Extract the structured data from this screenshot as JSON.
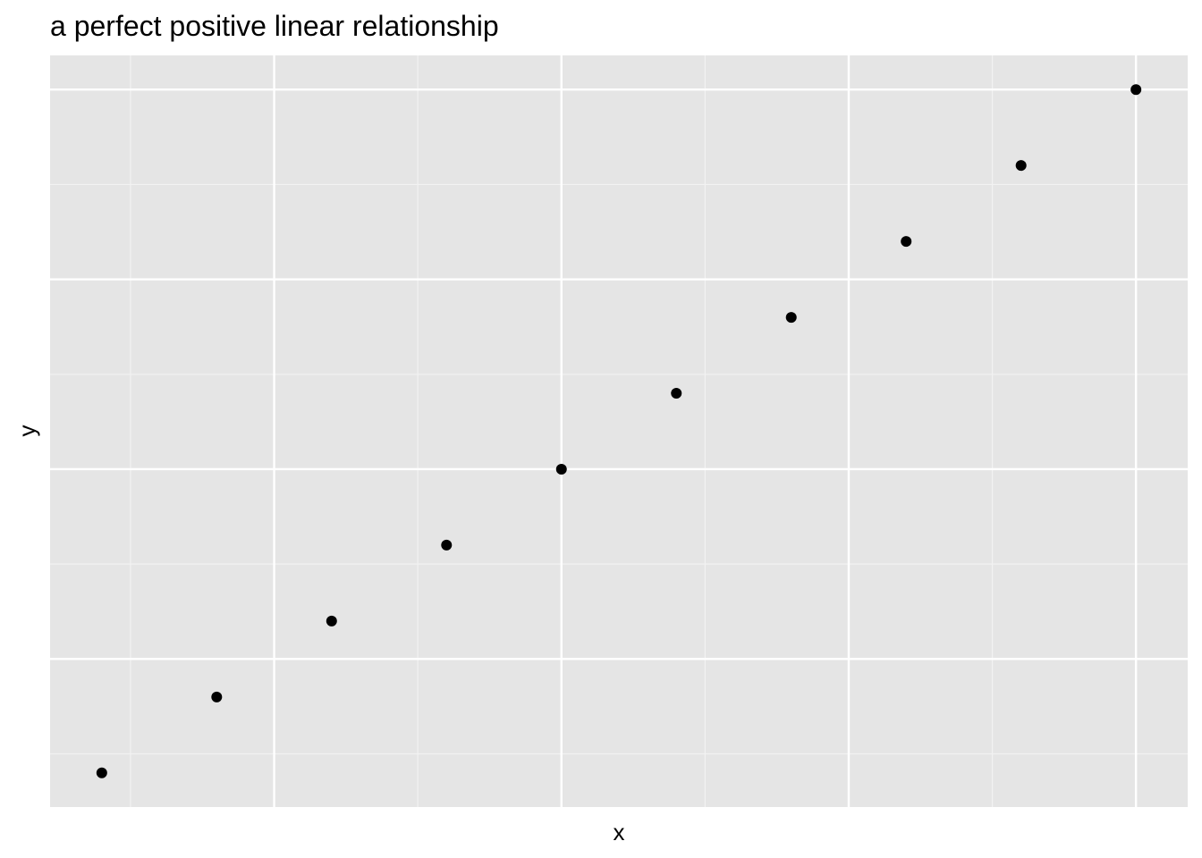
{
  "chart_data": {
    "type": "scatter",
    "title": "a perfect positive linear relationship",
    "x_label": "x",
    "y_label": "y",
    "x": [
      1,
      2,
      3,
      4,
      5,
      6,
      7,
      8,
      9,
      10
    ],
    "values": [
      1,
      2,
      3,
      4,
      5,
      6,
      7,
      8,
      9,
      10
    ],
    "color": "#000000",
    "xlim": [
      0.55,
      10.45
    ],
    "ylim": [
      0.55,
      10.45
    ],
    "xticks": [
      2.5,
      5,
      7.5,
      10
    ],
    "yticks": [
      2.5,
      5,
      7.5,
      10
    ],
    "x_minor_ticks": [
      1.25,
      3.75,
      6.25,
      8.75
    ],
    "y_minor_ticks": [
      1.25,
      3.75,
      6.25,
      8.75
    ],
    "grid": true
  }
}
